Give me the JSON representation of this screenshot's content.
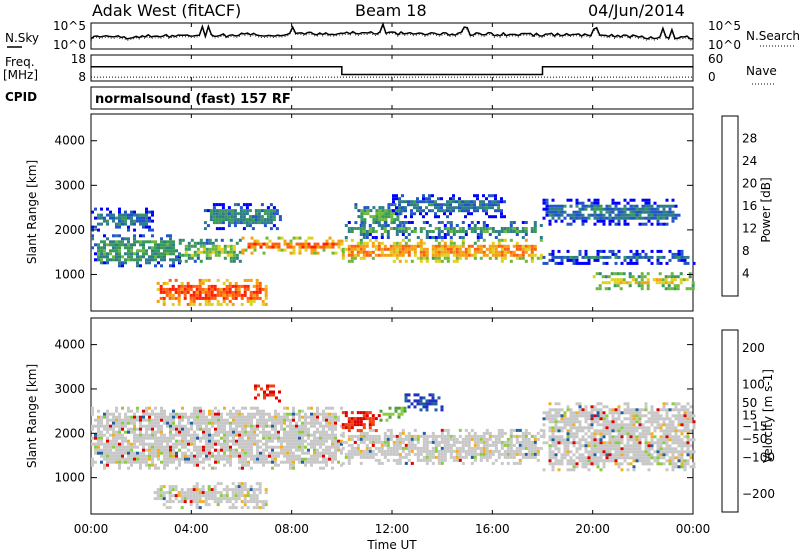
{
  "header": {
    "station": "Adak West (fitACF)",
    "beam": "Beam 18",
    "date": "04/Jun/2014"
  },
  "left_labels": {
    "nsky": "N.Sky",
    "freq": "Freq.",
    "freq_unit": "[MHz]",
    "cpid": "CPID"
  },
  "right_labels": {
    "nsearch": "N.Search",
    "nave": "Nave"
  },
  "noise_panel": {
    "ticks_left": [
      "10^5",
      "10^0"
    ],
    "ticks_right": [
      "10^5",
      "10^0"
    ]
  },
  "freq_panel": {
    "ticks_left": [
      "18",
      "8"
    ],
    "ticks_right": [
      "60",
      "0"
    ]
  },
  "cpid_text": "normalsound (fast) 157 RF",
  "x_axis": {
    "label": "Time UT",
    "ticks": [
      "00:00",
      "04:00",
      "08:00",
      "12:00",
      "16:00",
      "20:00",
      "00:00"
    ]
  },
  "colors": {
    "power_scale": [
      "#0000ff",
      "#2256c8",
      "#2e7d8a",
      "#3a9a5a",
      "#6cb83a",
      "#e0d020",
      "#f5a010",
      "#ff6010",
      "#ff2000"
    ],
    "velocity_scale": [
      "#2030c0",
      "#2060a0",
      "#50a040",
      "#8ccc40",
      "#c8c8c8",
      "#c8c8c8",
      "#f0b020",
      "#f08010",
      "#f04010",
      "#e00000"
    ]
  },
  "chart_data": [
    {
      "type": "line",
      "panel": "noise",
      "series": [
        {
          "values": [
            0.45,
            0.5,
            0.52,
            0.55,
            0.6,
            0.62,
            0.6,
            0.58,
            0.56,
            0.55,
            0.5,
            0.45
          ]
        }
      ],
      "ylim": [
        0,
        1
      ]
    },
    {
      "type": "line",
      "panel": "frequency",
      "x": [
        0,
        10.0,
        10.0,
        18.0,
        18.0,
        24
      ],
      "series": [
        {
          "values": [
            13.5,
            13.5,
            10.5,
            10.5,
            13.5,
            13.5
          ]
        },
        {
          "values": [
            9.5,
            9.5,
            9.5,
            9.5,
            9.5,
            9.5
          ]
        }
      ],
      "ylim": [
        8,
        18
      ]
    },
    {
      "type": "heatmap",
      "panel": "power",
      "title": "",
      "xlabel": "Time UT",
      "ylabel": "Slant Range [km]",
      "xlim": [
        0,
        24
      ],
      "ylim": [
        180,
        4600
      ],
      "yticks": [
        1000,
        2000,
        3000,
        4000
      ],
      "colorbar": {
        "label": "Power [dB]",
        "ticks": [
          4,
          8,
          12,
          16,
          20,
          24,
          28
        ],
        "range": [
          0,
          32
        ]
      },
      "bands": [
        {
          "t": [
            0,
            2.5
          ],
          "r": [
            2000,
            2500
          ],
          "level": 8
        },
        {
          "t": [
            0,
            3.5
          ],
          "r": [
            1200,
            1900
          ],
          "level": 12
        },
        {
          "t": [
            2.5,
            7.0
          ],
          "r": [
            320,
            900
          ],
          "level": 28
        },
        {
          "t": [
            3.5,
            6.0
          ],
          "r": [
            1300,
            1800
          ],
          "level": 16
        },
        {
          "t": [
            6.0,
            10.0
          ],
          "r": [
            1450,
            1850
          ],
          "level": 26
        },
        {
          "t": [
            4.5,
            7.5
          ],
          "r": [
            2000,
            2600
          ],
          "level": 10
        },
        {
          "t": [
            10.0,
            18.0
          ],
          "r": [
            1300,
            1800
          ],
          "level": 24
        },
        {
          "t": [
            10.0,
            18.0
          ],
          "r": [
            1800,
            2200
          ],
          "level": 12
        },
        {
          "t": [
            10.5,
            12.5
          ],
          "r": [
            2100,
            2600
          ],
          "level": 14
        },
        {
          "t": [
            12.0,
            16.5
          ],
          "r": [
            2300,
            2800
          ],
          "level": 8
        },
        {
          "t": [
            18.0,
            24.0
          ],
          "r": [
            1250,
            1550
          ],
          "level": 9
        },
        {
          "t": [
            20.0,
            24.0
          ],
          "r": [
            650,
            1050
          ],
          "level": 20
        },
        {
          "t": [
            18.0,
            23.5
          ],
          "r": [
            2100,
            2700
          ],
          "level": 8
        }
      ]
    },
    {
      "type": "heatmap",
      "panel": "velocity",
      "title": "",
      "xlabel": "Time UT",
      "ylabel": "Slant Range [km]",
      "xlim": [
        0,
        24
      ],
      "ylim": [
        180,
        4600
      ],
      "yticks": [
        1000,
        2000,
        3000,
        4000
      ],
      "colorbar": {
        "label": "Velocity [m s-1]",
        "ticks": [
          200,
          100,
          50,
          15,
          -15,
          -50,
          -100,
          -200
        ],
        "range": [
          -250,
          250
        ]
      },
      "bands": [
        {
          "t": [
            0,
            10.0
          ],
          "r": [
            1200,
            2600
          ],
          "level": 0
        },
        {
          "t": [
            2.5,
            7.0
          ],
          "r": [
            320,
            900
          ],
          "level": 0
        },
        {
          "t": [
            10.0,
            18.0
          ],
          "r": [
            1300,
            2100
          ],
          "level": 0
        },
        {
          "t": [
            10.0,
            11.5
          ],
          "r": [
            2050,
            2500
          ],
          "level": -200
        },
        {
          "t": [
            12.5,
            14.0
          ],
          "r": [
            2500,
            2900
          ],
          "level": 200
        },
        {
          "t": [
            11.5,
            12.5
          ],
          "r": [
            2300,
            2600
          ],
          "level": 100
        },
        {
          "t": [
            18.0,
            24.0
          ],
          "r": [
            1200,
            2700
          ],
          "level": 0
        },
        {
          "t": [
            6.5,
            7.5
          ],
          "r": [
            2700,
            3100
          ],
          "level": -200
        }
      ]
    }
  ]
}
